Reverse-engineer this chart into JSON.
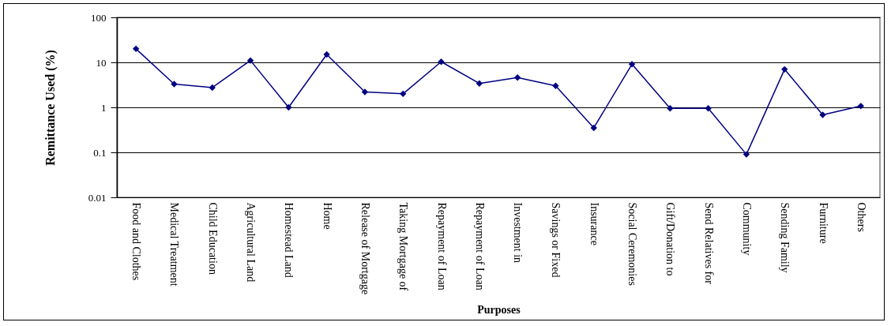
{
  "chart_data": {
    "type": "line",
    "xlabel": "Purposes",
    "ylabel": "Remittance Used (%)",
    "categories": [
      "Food and Clothes",
      "Medical Treatment",
      "Child Education",
      "Agricultural Land",
      "Homestead Land",
      "Home",
      "Release of Mortgage",
      "Taking Mortgage of",
      "Repayment of Loan",
      "Repayment of Loan",
      "Investment in",
      "Savings or Fixed",
      "Insurance",
      "Social Ceremonies",
      "Gift/Donation to",
      "Send Relatives for",
      "Community",
      "Sending Family",
      "Furniture",
      "Others"
    ],
    "series": [
      {
        "color": "#000080",
        "values": [
          20,
          3.3,
          2.75,
          11,
          1.0,
          15,
          2.2,
          2.0,
          10.3,
          3.4,
          4.6,
          3.0,
          0.35,
          9.1,
          0.95,
          0.95,
          0.09,
          7.0,
          0.68,
          1.07
        ]
      }
    ],
    "ylim": [
      0.01,
      100
    ],
    "yticks": [
      0.01,
      0.1,
      1,
      10,
      100
    ],
    "log": "y",
    "grid": "y",
    "marker": "diamond",
    "line_style": "solid"
  }
}
